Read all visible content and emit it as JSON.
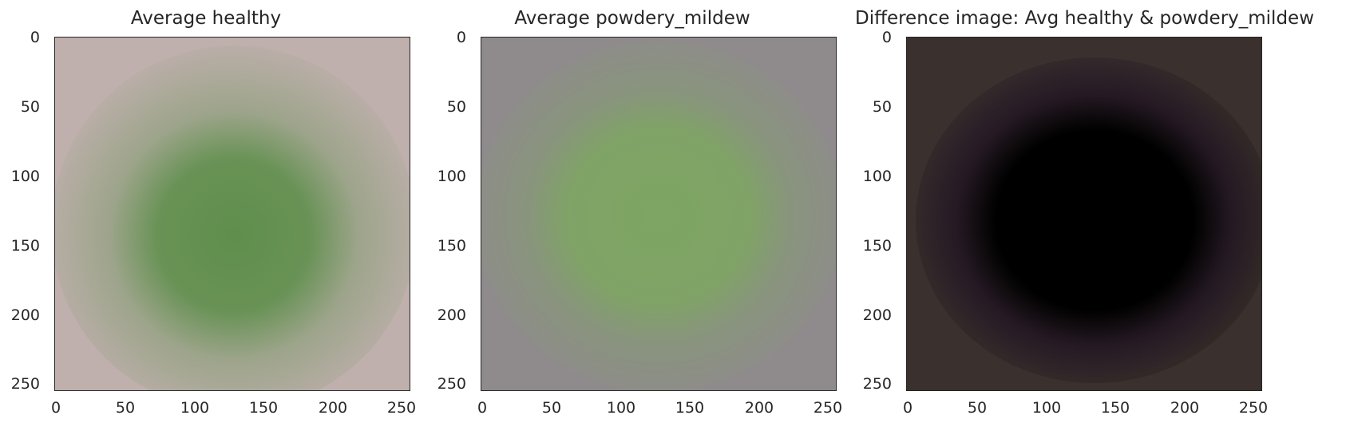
{
  "panels": [
    {
      "title": "Average healthy"
    },
    {
      "title": "Average powdery_mildew"
    },
    {
      "title": "Difference image: Avg healthy & powdery_mildew"
    }
  ],
  "axes": {
    "x_ticks": [
      "0",
      "50",
      "100",
      "150",
      "200",
      "250"
    ],
    "y_ticks": [
      "0",
      "50",
      "100",
      "150",
      "200",
      "250"
    ]
  },
  "colors": {
    "healthy_background": "#bfb0ad",
    "healthy_leaf": "#5f8f4c",
    "mildew_background": "#8f8b8c",
    "mildew_leaf": "#7ea563",
    "difference_background": "#3a302d",
    "difference_center": "#000000",
    "difference_ring": "#4a2b52"
  }
}
